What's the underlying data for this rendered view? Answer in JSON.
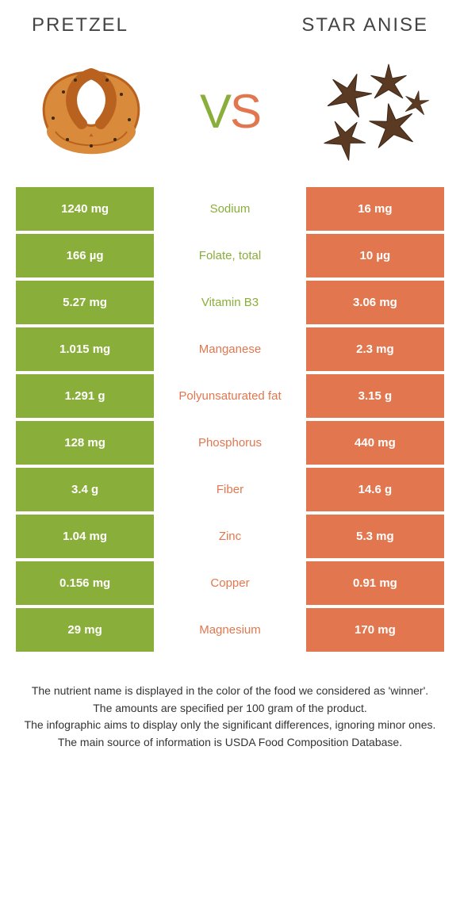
{
  "colors": {
    "green": "#8aae3a",
    "orange": "#e2774f",
    "green_text": "#8aae3a",
    "orange_text": "#e2774f"
  },
  "food_left": {
    "title": "PRETZEL"
  },
  "food_right": {
    "title": "STAR ANISE"
  },
  "vs": {
    "v": "V",
    "s": "S"
  },
  "rows": [
    {
      "left": "1240 mg",
      "nutrient": "Sodium",
      "right": "16 mg",
      "winner": "left"
    },
    {
      "left": "166 µg",
      "nutrient": "Folate, total",
      "right": "10 µg",
      "winner": "left"
    },
    {
      "left": "5.27 mg",
      "nutrient": "Vitamin B3",
      "right": "3.06 mg",
      "winner": "left"
    },
    {
      "left": "1.015 mg",
      "nutrient": "Manganese",
      "right": "2.3 mg",
      "winner": "right"
    },
    {
      "left": "1.291 g",
      "nutrient": "Polyunsaturated fat",
      "right": "3.15 g",
      "winner": "right"
    },
    {
      "left": "128 mg",
      "nutrient": "Phosphorus",
      "right": "440 mg",
      "winner": "right"
    },
    {
      "left": "3.4 g",
      "nutrient": "Fiber",
      "right": "14.6 g",
      "winner": "right"
    },
    {
      "left": "1.04 mg",
      "nutrient": "Zinc",
      "right": "5.3 mg",
      "winner": "right"
    },
    {
      "left": "0.156 mg",
      "nutrient": "Copper",
      "right": "0.91 mg",
      "winner": "right"
    },
    {
      "left": "29 mg",
      "nutrient": "Magnesium",
      "right": "170 mg",
      "winner": "right"
    }
  ],
  "footer": {
    "line1": "The nutrient name is displayed in the color of the food we considered as 'winner'.",
    "line2": "The amounts are specified per 100 gram of the product.",
    "line3": "The infographic aims to display only the significant differences, ignoring minor ones.",
    "line4": "The main source of information is USDA Food Composition Database."
  }
}
